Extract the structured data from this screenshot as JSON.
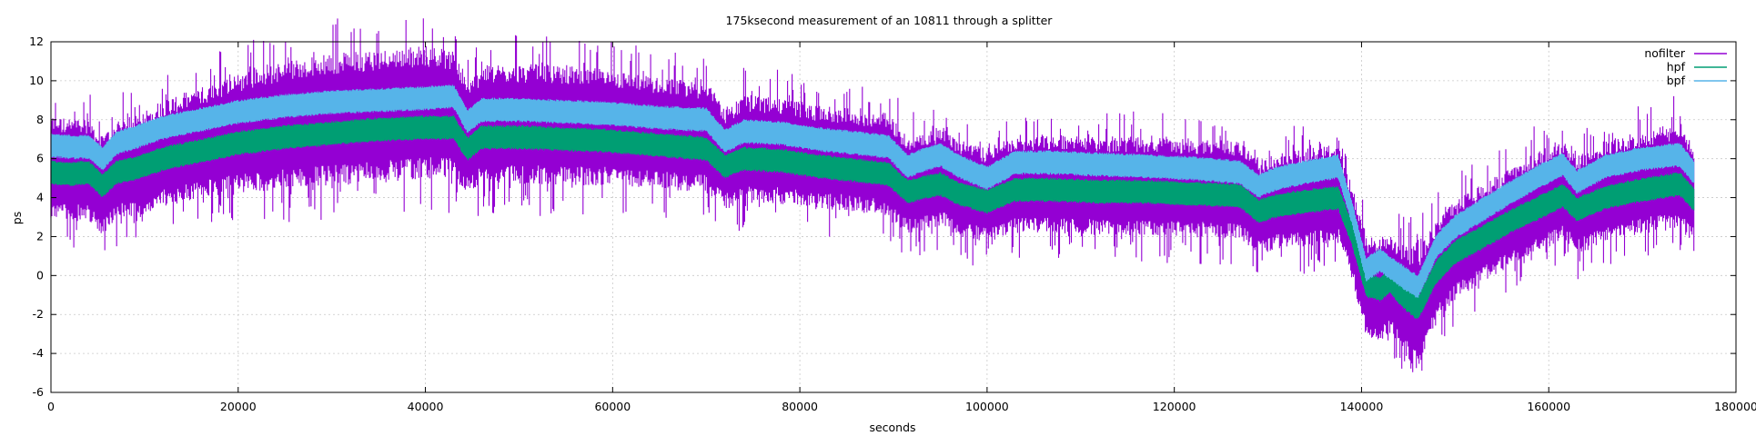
{
  "chart_data": {
    "type": "line",
    "title": "175ksecond measurement of an 10811 through a splitter",
    "xlabel": "seconds",
    "ylabel": "ps",
    "xlim": [
      0,
      180000
    ],
    "ylim": [
      -6,
      12
    ],
    "xticks": [
      0,
      20000,
      40000,
      60000,
      80000,
      100000,
      120000,
      140000,
      160000,
      180000
    ],
    "yticks": [
      -6,
      -4,
      -2,
      0,
      2,
      4,
      6,
      8,
      10,
      12
    ],
    "grid": true,
    "legend_position": "top-right",
    "x": [
      0,
      2000,
      4000,
      5500,
      7000,
      9000,
      12000,
      16000,
      20000,
      25000,
      30000,
      35000,
      40000,
      43000,
      44500,
      46000,
      50000,
      55000,
      60000,
      65000,
      70000,
      72000,
      74000,
      78000,
      82000,
      86000,
      89500,
      91500,
      93000,
      95000,
      97000,
      100000,
      103000,
      107000,
      112000,
      117000,
      122000,
      127000,
      129000,
      131000,
      134000,
      137500,
      139000,
      140500,
      142000,
      143000,
      144500,
      146000,
      148000,
      150000,
      153000,
      156000,
      159000,
      161500,
      163000,
      166000,
      170000,
      174000,
      175500
    ],
    "series": [
      {
        "name": "nofilter",
        "color": "#9400d3",
        "center": [
          5.6,
          5.4,
          5.5,
          4.6,
          5.4,
          5.6,
          6.3,
          6.8,
          7.3,
          7.7,
          8.0,
          8.2,
          8.4,
          8.3,
          7.0,
          7.7,
          7.8,
          7.7,
          7.6,
          7.3,
          7.1,
          6.0,
          6.5,
          6.4,
          6.1,
          5.9,
          5.7,
          4.6,
          4.8,
          5.1,
          4.5,
          4.1,
          4.7,
          4.7,
          4.6,
          4.6,
          4.5,
          4.4,
          3.5,
          3.8,
          4.0,
          4.2,
          2.2,
          -0.6,
          -0.8,
          -0.4,
          -1.2,
          -1.8,
          0.2,
          1.3,
          2.2,
          3.0,
          3.8,
          4.4,
          3.6,
          4.3,
          4.8,
          5.1,
          4.2
        ],
        "half_band": [
          2.4,
          2.4,
          2.4,
          2.3,
          2.3,
          2.4,
          2.5,
          2.6,
          2.8,
          3.0,
          3.1,
          3.1,
          3.1,
          3.0,
          2.6,
          2.8,
          2.8,
          2.8,
          2.7,
          2.6,
          2.6,
          2.4,
          2.5,
          2.5,
          2.4,
          2.4,
          2.4,
          2.3,
          2.3,
          2.3,
          2.3,
          2.2,
          2.3,
          2.3,
          2.3,
          2.3,
          2.3,
          2.3,
          2.2,
          2.2,
          2.3,
          2.3,
          2.2,
          2.3,
          2.5,
          2.3,
          2.6,
          2.8,
          2.4,
          2.3,
          2.3,
          2.3,
          2.4,
          2.4,
          2.3,
          2.4,
          2.4,
          2.5,
          2.3
        ]
      },
      {
        "name": "hpf",
        "color": "#009e73",
        "center": [
          5.3,
          5.2,
          5.3,
          4.6,
          5.3,
          5.5,
          6.0,
          6.4,
          6.8,
          7.1,
          7.3,
          7.5,
          7.6,
          7.6,
          6.5,
          7.1,
          7.1,
          7.0,
          6.9,
          6.7,
          6.5,
          5.6,
          6.0,
          5.9,
          5.6,
          5.4,
          5.2,
          4.3,
          4.5,
          4.7,
          4.2,
          3.8,
          4.4,
          4.4,
          4.3,
          4.3,
          4.2,
          4.1,
          3.3,
          3.6,
          3.8,
          4.0,
          2.1,
          -0.5,
          -0.7,
          -0.3,
          -1.1,
          -1.7,
          0.2,
          1.2,
          2.0,
          2.8,
          3.5,
          4.1,
          3.4,
          4.0,
          4.4,
          4.7,
          3.9
        ],
        "half_band": [
          0.7,
          0.7,
          0.7,
          0.7,
          0.7,
          0.7,
          0.7,
          0.7,
          0.7,
          0.7,
          0.7,
          0.7,
          0.7,
          0.7,
          0.7,
          0.7,
          0.7,
          0.7,
          0.7,
          0.7,
          0.7,
          0.7,
          0.7,
          0.7,
          0.7,
          0.7,
          0.7,
          0.7,
          0.7,
          0.7,
          0.7,
          0.7,
          0.7,
          0.7,
          0.7,
          0.7,
          0.7,
          0.7,
          0.7,
          0.7,
          0.7,
          0.7,
          0.7,
          0.7,
          0.7,
          0.7,
          0.7,
          0.7,
          0.7,
          0.7,
          0.7,
          0.7,
          0.7,
          0.7,
          0.7,
          0.7,
          0.7,
          0.7,
          0.7
        ]
      },
      {
        "name": "bpf",
        "color": "#56b4e9",
        "center": [
          6.7,
          6.6,
          6.6,
          6.0,
          6.8,
          7.1,
          7.6,
          8.0,
          8.4,
          8.7,
          8.9,
          9.0,
          9.1,
          9.2,
          7.9,
          8.5,
          8.5,
          8.4,
          8.3,
          8.1,
          8.0,
          6.9,
          7.4,
          7.3,
          7.0,
          6.8,
          6.6,
          5.6,
          5.9,
          6.2,
          5.6,
          5.0,
          5.8,
          5.8,
          5.7,
          5.6,
          5.5,
          5.3,
          4.6,
          5.0,
          5.3,
          5.6,
          3.2,
          0.3,
          0.8,
          0.4,
          -0.1,
          -0.6,
          1.5,
          2.5,
          3.4,
          4.3,
          5.1,
          5.7,
          4.8,
          5.6,
          6.0,
          6.2,
          5.3
        ],
        "half_band": [
          0.7,
          0.7,
          0.7,
          0.7,
          0.7,
          0.7,
          0.7,
          0.7,
          0.7,
          0.7,
          0.7,
          0.7,
          0.7,
          0.7,
          0.7,
          0.7,
          0.7,
          0.7,
          0.7,
          0.7,
          0.7,
          0.7,
          0.7,
          0.7,
          0.7,
          0.7,
          0.7,
          0.7,
          0.7,
          0.7,
          0.7,
          0.7,
          0.7,
          0.7,
          0.7,
          0.7,
          0.7,
          0.7,
          0.7,
          0.7,
          0.7,
          0.7,
          0.7,
          0.7,
          0.7,
          0.7,
          0.7,
          0.7,
          0.7,
          0.7,
          0.7,
          0.7,
          0.7,
          0.7,
          0.7,
          0.7,
          0.7,
          0.7,
          0.7
        ]
      }
    ],
    "series_draw_order": [
      "nofilter",
      "hpf",
      "bpf"
    ]
  }
}
